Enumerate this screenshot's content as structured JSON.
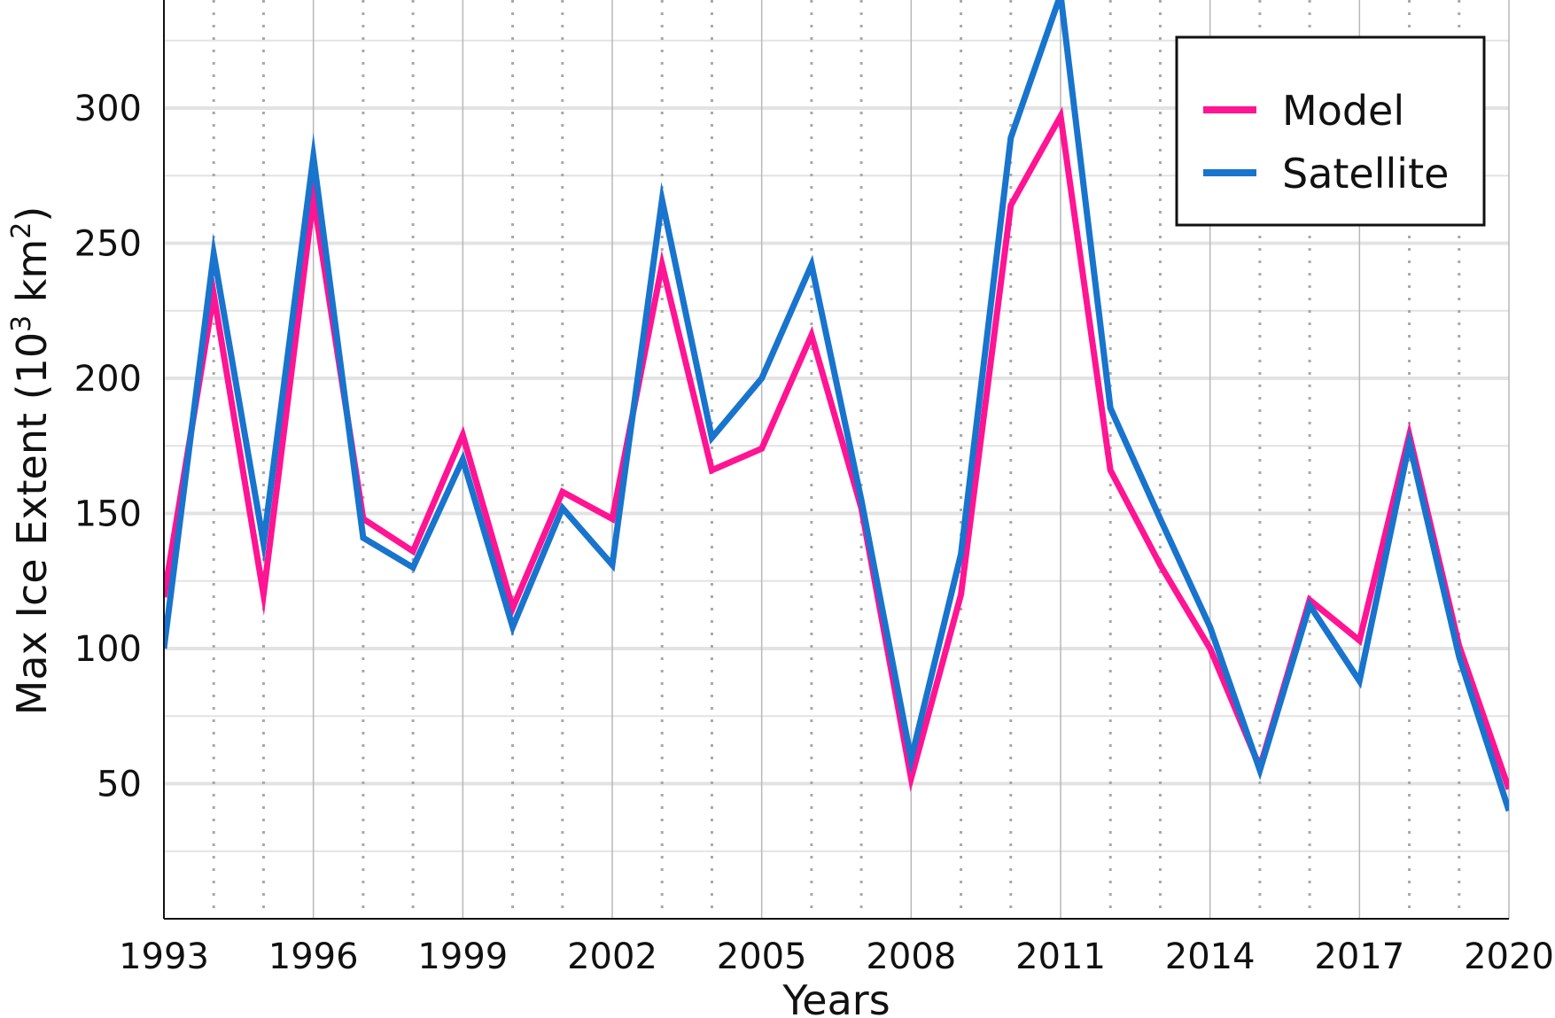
{
  "chart_data": {
    "type": "line",
    "xlabel": "Years",
    "ylabel": "Max Ice Extent (10",
    "ylabel_sup": "3",
    "ylabel_mid": " km",
    "ylabel_sup2": "2",
    "ylabel_end": ")",
    "xlim": [
      1993,
      2020
    ],
    "ylim": [
      0,
      340
    ],
    "x_ticks": [
      "1993",
      "1996",
      "1999",
      "2002",
      "2005",
      "2008",
      "2011",
      "2014",
      "2017",
      "2020"
    ],
    "y_ticks": [
      "50",
      "100",
      "150",
      "200",
      "250",
      "300"
    ],
    "grid": true,
    "legend_position": "top-right",
    "x": [
      1993,
      1994,
      1995,
      1996,
      1997,
      1998,
      1999,
      2000,
      2001,
      2002,
      2003,
      2004,
      2005,
      2006,
      2007,
      2008,
      2009,
      2010,
      2011,
      2012,
      2013,
      2014,
      2015,
      2016,
      2017,
      2018,
      2019,
      2020
    ],
    "series": [
      {
        "name": "Model",
        "color": "#ff1493",
        "values": [
          119,
          231,
          120,
          267,
          148,
          136,
          179,
          115,
          158,
          148,
          242,
          166,
          174,
          216,
          152,
          52,
          120,
          264,
          297,
          166,
          131,
          100,
          56,
          118,
          103,
          179,
          101,
          48
        ]
      },
      {
        "name": "Satellite",
        "color": "#1874cd",
        "values": [
          100,
          246,
          139,
          282,
          141,
          130,
          170,
          108,
          152,
          131,
          266,
          178,
          200,
          242,
          155,
          59,
          135,
          289,
          342,
          189,
          148,
          108,
          55,
          116,
          88,
          176,
          97,
          40
        ]
      }
    ]
  }
}
